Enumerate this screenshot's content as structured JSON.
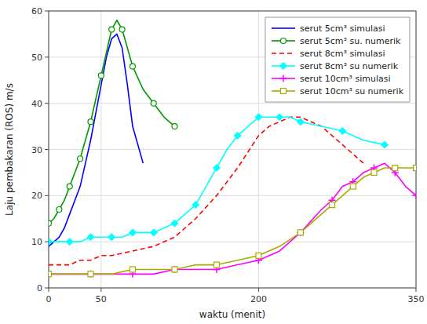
{
  "chart_data": {
    "type": "line",
    "x_label": "waktu (menit)",
    "y_label": "Laju pembakaran (ROS) m/s",
    "xlim": [
      0,
      350
    ],
    "ylim": [
      0,
      60
    ],
    "xticks": [
      0,
      50,
      200,
      350
    ],
    "yticks": [
      0,
      10,
      20,
      30,
      40,
      50,
      60
    ],
    "grid": true,
    "legend": "upper-right",
    "series": [
      {
        "name": "serut 5cm³ simulasi",
        "color": "blue",
        "line_style": "solid",
        "x": [
          0,
          5,
          10,
          15,
          20,
          25,
          30,
          35,
          40,
          45,
          50,
          55,
          60,
          65,
          70,
          75,
          80,
          90
        ],
        "values": [
          9,
          10,
          11,
          13,
          16,
          19,
          22,
          27,
          32,
          38,
          44,
          50,
          54,
          55,
          52,
          44,
          35,
          27
        ]
      },
      {
        "name": "serut 5cm³ su. numerik",
        "color": "#009900",
        "line_style": "solid",
        "marker": "circle",
        "x": [
          0,
          5,
          10,
          15,
          20,
          25,
          30,
          35,
          40,
          45,
          50,
          55,
          60,
          65,
          70,
          75,
          80,
          90,
          100,
          110,
          120
        ],
        "values": [
          14,
          15,
          17,
          19,
          22,
          25,
          28,
          32,
          36,
          41,
          46,
          51,
          56,
          58,
          56,
          52,
          48,
          43,
          40,
          37,
          35
        ]
      },
      {
        "name": "serut 8cm³ simulasi",
        "color": "red",
        "line_style": "dashed",
        "x": [
          0,
          10,
          20,
          30,
          40,
          50,
          60,
          80,
          100,
          120,
          140,
          160,
          180,
          200,
          210,
          220,
          230,
          240,
          250,
          260,
          270,
          280,
          290,
          300
        ],
        "values": [
          5,
          5,
          5,
          6,
          6,
          7,
          7,
          8,
          9,
          11,
          15,
          20,
          26,
          33,
          35,
          36,
          37,
          37,
          36,
          35,
          33,
          31,
          29,
          27
        ]
      },
      {
        "name": "serut 8cm³ su numerik",
        "color": "cyan",
        "line_style": "solid",
        "marker": "diamond",
        "x": [
          0,
          10,
          20,
          30,
          40,
          50,
          60,
          70,
          80,
          90,
          100,
          110,
          120,
          130,
          140,
          150,
          160,
          170,
          180,
          190,
          200,
          210,
          220,
          230,
          240,
          260,
          280,
          300,
          320
        ],
        "values": [
          10,
          10,
          10,
          10,
          11,
          11,
          11,
          11,
          12,
          12,
          12,
          13,
          14,
          16,
          18,
          22,
          26,
          30,
          33,
          35,
          37,
          37,
          37,
          37,
          36,
          35,
          34,
          32,
          31
        ]
      },
      {
        "name": "serut 10cm³ simulasi",
        "color": "magenta",
        "line_style": "solid",
        "marker": "plus",
        "x": [
          0,
          20,
          40,
          60,
          80,
          100,
          120,
          140,
          160,
          180,
          200,
          220,
          240,
          260,
          270,
          280,
          290,
          300,
          310,
          320,
          330,
          340,
          350
        ],
        "values": [
          3,
          3,
          3,
          3,
          3,
          3,
          4,
          4,
          4,
          5,
          6,
          8,
          12,
          17,
          19,
          22,
          23,
          25,
          26,
          27,
          25,
          22,
          20
        ]
      },
      {
        "name": "serut 10cm³ su numerik",
        "color": "#aaaa00",
        "line_style": "solid",
        "marker": "square",
        "x": [
          0,
          20,
          40,
          60,
          80,
          100,
          120,
          140,
          160,
          180,
          200,
          220,
          240,
          260,
          270,
          280,
          290,
          300,
          310,
          320,
          330,
          340,
          350
        ],
        "values": [
          3,
          3,
          3,
          3,
          4,
          4,
          4,
          5,
          5,
          6,
          7,
          9,
          12,
          16,
          18,
          20,
          22,
          24,
          25,
          26,
          26,
          26,
          26
        ]
      }
    ]
  }
}
